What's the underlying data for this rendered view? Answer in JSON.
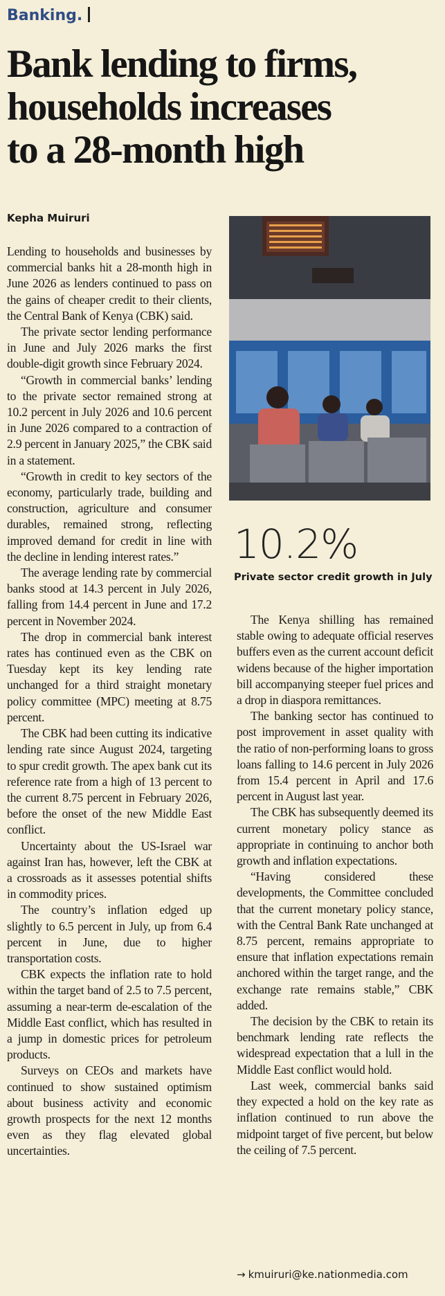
{
  "header": {
    "section": "Banking.",
    "title_lines": [
      "Bank lending to firms,",
      "households increases",
      "to a 28-month high"
    ]
  },
  "byline": "Kepha Muiruri",
  "left_paragraphs": [
    "Lending to households and businesses by commercial banks hit a 28-month high in June 2026 as lenders continued to pass on the gains of cheaper credit to their clients, the Central Bank of Kenya (CBK) said.",
    "The private sector lending performance in June and July 2026 marks the first double-digit growth since February 2024.",
    "“Growth in commercial banks’ lending to the private sector remained strong at 10.2 percent in July 2026 and 10.6 percent in June 2026 compared to a contraction of 2.9 percent in January 2025,” the CBK said in a statement.",
    "“Growth in credit to key sectors of the economy, particularly trade, building and construction, agriculture and consumer durables, remained strong, reflecting improved demand for credit in line with the decline in lending interest rates.”",
    "The average lending rate by commercial banks stood at 14.3 percent in July 2026, falling from 14.4 percent in June and 17.2 percent in November 2024.",
    "The drop in commercial bank interest rates has continued even as the CBK on Tuesday kept its key lending rate unchanged for a third straight monetary policy committee (MPC) meeting at 8.75 percent.",
    "The CBK had been cutting its indicative lending rate since August 2024, targeting to spur credit growth. The apex bank cut its reference rate from a high of 13 percent to the current 8.75 percent in February 2026, before the onset of the new Middle East conflict.",
    "Uncertainty about the US-Israel war against Iran has, however, left the CBK at a crossroads as it assesses potential shifts in commodity prices.",
    "The country’s inflation edged up slightly to 6.5 percent in July, up from 6.4 percent in June, due to higher transportation costs.",
    "CBK expects the inflation rate to hold within the target band of 2.5 to 7.5 percent, assuming a near-term de-escalation of the Middle East conflict, which has resulted in a jump in domestic prices for petroleum products.",
    "Surveys on CEOs and markets have continued to show sustained optimism about business activity and economic growth prospects for the next 12 months even as they flag elevated global uncertainties."
  ],
  "stat": {
    "value": "10.2%",
    "caption": "Private sector credit growth in July"
  },
  "right_paragraphs": [
    "The Kenya shilling has remained stable owing to adequate official reserves buffers even as the current account deficit widens because of the higher importation bill accompanying steeper fuel prices and a drop in diaspora remittances.",
    "The banking sector has continued to post improvement in asset quality with the ratio of non-performing loans to gross loans falling to 14.6 percent in July 2026 from 15.4 percent in April and 17.6 percent in August last year.",
    "The CBK has subsequently deemed its current monetary policy stance as appropriate in continuing to anchor both growth and inflation expectations.",
    "“Having considered these developments, the Committee concluded that the current monetary policy stance, with the Central Bank Rate unchanged at 8.75 percent, remains appropriate to ensure that inflation expectations remain anchored within the target range, and the exchange rate remains stable,” CBK added.",
    "The decision by the CBK to retain its benchmark lending rate reflects the widespread expectation that a lull in the Middle East conflict would hold.",
    "Last week, commercial banks said they expected a hold on the key rate as inflation continued to run above the midpoint target of five percent, but below the ceiling of 7.5 percent."
  ],
  "email": "kmuiruri@ke.nationmedia.com"
}
